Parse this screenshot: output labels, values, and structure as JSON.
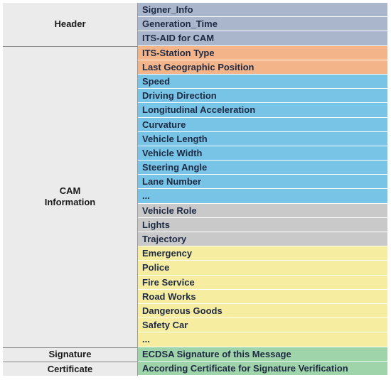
{
  "colors": {
    "header": "#a9b6cb",
    "orange": "#f4b48a",
    "blue": "#78c4e6",
    "gray": "#c9c9c9",
    "yellow": "#f6eda0",
    "green": "#9fd3a9"
  },
  "sections": [
    {
      "label": "Header"
    },
    {
      "label": "CAM\nInformation"
    },
    {
      "label": "Signature"
    },
    {
      "label": "Certificate"
    }
  ],
  "rows": [
    {
      "text": "Signer_Info",
      "color": "header",
      "section": 0
    },
    {
      "text": "Generation_Time",
      "color": "header",
      "section": 0
    },
    {
      "text": "ITS-AID for CAM",
      "color": "header",
      "section": 0
    },
    {
      "text": "ITS-Station Type",
      "color": "orange",
      "section": 1
    },
    {
      "text": "Last Geographic Position",
      "color": "orange",
      "section": 1
    },
    {
      "text": "Speed",
      "color": "blue",
      "section": 1
    },
    {
      "text": "Driving Direction",
      "color": "blue",
      "section": 1
    },
    {
      "text": "Longitudinal Acceleration",
      "color": "blue",
      "section": 1
    },
    {
      "text": "Curvature",
      "color": "blue",
      "section": 1
    },
    {
      "text": "Vehicle Length",
      "color": "blue",
      "section": 1
    },
    {
      "text": "Vehicle Width",
      "color": "blue",
      "section": 1
    },
    {
      "text": "Steering Angle",
      "color": "blue",
      "section": 1
    },
    {
      "text": "Lane Number",
      "color": "blue",
      "section": 1
    },
    {
      "text": "...",
      "color": "blue",
      "section": 1
    },
    {
      "text": "Vehicle Role",
      "color": "gray",
      "section": 1
    },
    {
      "text": "Lights",
      "color": "gray",
      "section": 1
    },
    {
      "text": "Trajectory",
      "color": "gray",
      "section": 1
    },
    {
      "text": "Emergency",
      "color": "yellow",
      "section": 1
    },
    {
      "text": "Police",
      "color": "yellow",
      "section": 1
    },
    {
      "text": "Fire Service",
      "color": "yellow",
      "section": 1
    },
    {
      "text": "Road Works",
      "color": "yellow",
      "section": 1
    },
    {
      "text": "Dangerous Goods",
      "color": "yellow",
      "section": 1
    },
    {
      "text": "Safety Car",
      "color": "yellow",
      "section": 1
    },
    {
      "text": "...",
      "color": "yellow",
      "section": 1
    },
    {
      "text": "ECDSA Signature of this Message",
      "color": "green",
      "section": 2
    },
    {
      "text": "According Certificate for Signature Verification",
      "color": "green",
      "section": 3
    }
  ]
}
